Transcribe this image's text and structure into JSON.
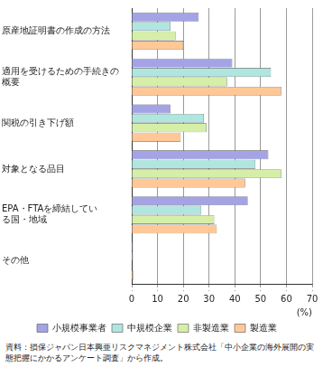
{
  "chart_data": {
    "type": "bar",
    "orientation": "horizontal",
    "categories": [
      "原産地証明書の作成の方法",
      "適用を受けるための手続きの概要",
      "関税の引き下げ額",
      "対象となる品目",
      "EPA・FTAを締結している国・地域",
      "その他"
    ],
    "series": [
      {
        "name": "小規模事業者",
        "color": "#a3a3e6",
        "values": [
          26,
          39,
          15,
          53,
          45,
          0.5
        ]
      },
      {
        "name": "中規模企業",
        "color": "#b0e6e0",
        "values": [
          15,
          54,
          28,
          48,
          27,
          0.5
        ]
      },
      {
        "name": "非製造業",
        "color": "#d6efa8",
        "values": [
          17,
          37,
          29,
          58,
          32,
          0
        ]
      },
      {
        "name": "製造業",
        "color": "#ffc896",
        "values": [
          20,
          58,
          19,
          44,
          33,
          0.6
        ]
      }
    ],
    "xlabel": "(%)",
    "xlim": [
      0,
      70
    ],
    "xticks": [
      0,
      10,
      20,
      30,
      40,
      50,
      60,
      70
    ],
    "grid": true,
    "legend": "bottom",
    "source": "資料：損保ジャパン日本興亜リスクマネジメント株式会社「中小企業の海外展開の実態把握にかかるアンケート調査」から作成。"
  }
}
